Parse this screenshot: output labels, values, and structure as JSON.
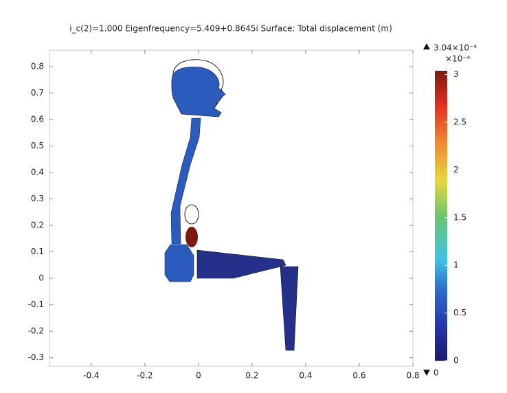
{
  "chart_data": {
    "type": "surface",
    "title": "i_c(2)=1.000 Eigenfrequency=5.409+0.8645i   Surface: Total displacement (m)",
    "xlim": [
      -0.556,
      0.8
    ],
    "xticks": [
      -0.4,
      -0.2,
      0,
      0.2,
      0.4,
      0.6,
      0.8
    ],
    "ylim": [
      -0.332,
      0.862
    ],
    "yticks": [
      -0.3,
      -0.2,
      -0.1,
      0,
      0.1,
      0.2,
      0.3,
      0.4,
      0.5,
      0.6,
      0.7,
      0.8
    ],
    "colorbar": {
      "lim": [
        0,
        3.04
      ],
      "ticks": [
        0,
        0.5,
        1,
        1.5,
        2,
        2.5,
        3
      ],
      "max": {
        "value": 3.04,
        "label": "3.04×10⁻⁴"
      },
      "multiplier": "×10⁻⁴",
      "min": 0
    }
  }
}
